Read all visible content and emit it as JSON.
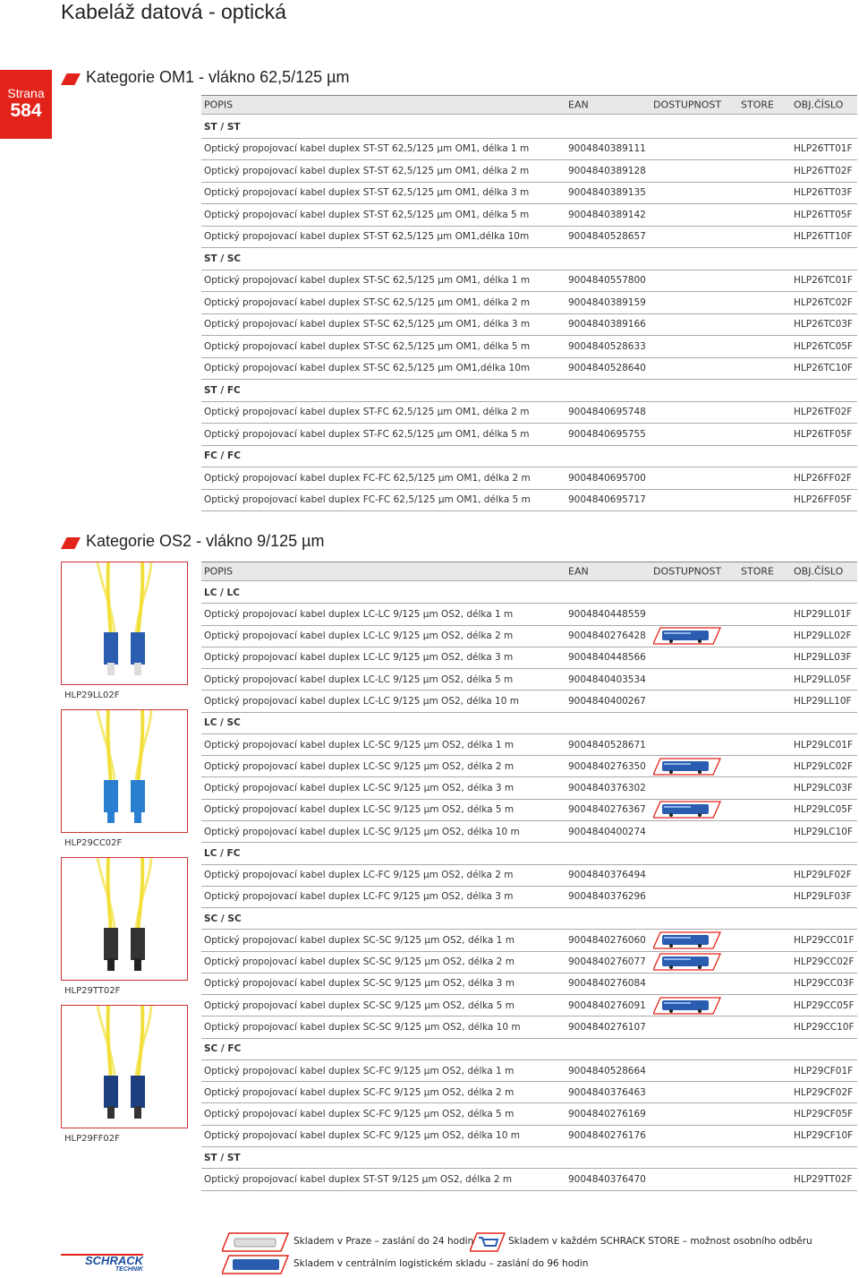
{
  "header": {
    "title": "Kabeláž datová - optická",
    "page_label": "Strana",
    "page_number": "584"
  },
  "sections": [
    {
      "title": "Kategorie OM1 - vlákno 62,5/125 µm",
      "columns": [
        "POPIS",
        "EAN",
        "DOSTUPNOST",
        "STORE",
        "OBJ.ČÍSLO"
      ],
      "groups": [
        {
          "name": "ST / ST",
          "rows": [
            {
              "popis": "Optický propojovací kabel duplex ST-ST 62,5/125 µm OM1, délka 1 m",
              "ean": "9004840389111",
              "obj": "HLP26TT01F"
            },
            {
              "popis": "Optický propojovací kabel duplex ST-ST 62,5/125 µm OM1, délka 2 m",
              "ean": "9004840389128",
              "obj": "HLP26TT02F"
            },
            {
              "popis": "Optický propojovací kabel duplex ST-ST 62,5/125 µm OM1, délka 3 m",
              "ean": "9004840389135",
              "obj": "HLP26TT03F"
            },
            {
              "popis": "Optický propojovací kabel duplex ST-ST 62,5/125 µm OM1, délka 5 m",
              "ean": "9004840389142",
              "obj": "HLP26TT05F"
            },
            {
              "popis": "Optický propojovací kabel duplex ST-ST 62,5/125 µm OM1,délka 10m",
              "ean": "9004840528657",
              "obj": "HLP26TT10F"
            }
          ]
        },
        {
          "name": "ST / SC",
          "rows": [
            {
              "popis": "Optický propojovací kabel duplex ST-SC 62,5/125 µm OM1, délka 1 m",
              "ean": "9004840557800",
              "obj": "HLP26TC01F"
            },
            {
              "popis": "Optický propojovací kabel duplex ST-SC 62,5/125 µm OM1, délka 2 m",
              "ean": "9004840389159",
              "obj": "HLP26TC02F"
            },
            {
              "popis": "Optický propojovací kabel duplex ST-SC 62,5/125 µm OM1, délka 3 m",
              "ean": "9004840389166",
              "obj": "HLP26TC03F"
            },
            {
              "popis": "Optický propojovací kabel duplex ST-SC 62,5/125 µm OM1, délka 5 m",
              "ean": "9004840528633",
              "obj": "HLP26TC05F"
            },
            {
              "popis": "Optický propojovací kabel duplex ST-SC 62,5/125 µm OM1,délka 10m",
              "ean": "9004840528640",
              "obj": "HLP26TC10F"
            }
          ]
        },
        {
          "name": "ST / FC",
          "rows": [
            {
              "popis": "Optický propojovací kabel duplex ST-FC 62,5/125 µm OM1, délka 2 m",
              "ean": "9004840695748",
              "obj": "HLP26TF02F"
            },
            {
              "popis": "Optický propojovací kabel duplex ST-FC 62,5/125 µm OM1, délka 5 m",
              "ean": "9004840695755",
              "obj": "HLP26TF05F"
            }
          ]
        },
        {
          "name": "FC / FC",
          "rows": [
            {
              "popis": "Optický propojovací kabel duplex FC-FC 62,5/125 µm OM1, délka 2 m",
              "ean": "9004840695700",
              "obj": "HLP26FF02F"
            },
            {
              "popis": "Optický propojovací kabel duplex FC-FC 62,5/125 µm OM1, délka 5 m",
              "ean": "9004840695717",
              "obj": "HLP26FF05F"
            }
          ]
        }
      ]
    },
    {
      "title": "Kategorie OS2 - vlákno 9/125 µm",
      "columns": [
        "POPIS",
        "EAN",
        "DOSTUPNOST",
        "STORE",
        "OBJ.ČÍSLO"
      ],
      "groups": [
        {
          "name": "LC / LC",
          "rows": [
            {
              "popis": "Optický propojovací kabel duplex LC-LC 9/125 µm OS2, délka 1 m",
              "ean": "9004840448559",
              "obj": "HLP29LL01F"
            },
            {
              "popis": "Optický propojovací kabel duplex LC-LC 9/125 µm OS2, délka 2 m",
              "ean": "9004840276428",
              "obj": "HLP29LL02F",
              "truck": true
            },
            {
              "popis": "Optický propojovací kabel duplex LC-LC 9/125 µm OS2, délka 3 m",
              "ean": "9004840448566",
              "obj": "HLP29LL03F"
            },
            {
              "popis": "Optický propojovací kabel duplex LC-LC 9/125 µm OS2, délka 5 m",
              "ean": "9004840403534",
              "obj": "HLP29LL05F"
            },
            {
              "popis": "Optický propojovací kabel duplex LC-LC 9/125 µm OS2, délka 10 m",
              "ean": "9004840400267",
              "obj": "HLP29LL10F"
            }
          ]
        },
        {
          "name": "LC / SC",
          "rows": [
            {
              "popis": "Optický propojovací kabel duplex LC-SC 9/125 µm OS2, délka 1 m",
              "ean": "9004840528671",
              "obj": "HLP29LC01F"
            },
            {
              "popis": "Optický propojovací kabel duplex LC-SC 9/125 µm OS2, délka 2 m",
              "ean": "9004840276350",
              "obj": "HLP29LC02F",
              "truck": true
            },
            {
              "popis": "Optický propojovací kabel duplex LC-SC 9/125 µm OS2, délka 3 m",
              "ean": "9004840376302",
              "obj": "HLP29LC03F"
            },
            {
              "popis": "Optický propojovací kabel duplex LC-SC 9/125 µm OS2, délka 5 m",
              "ean": "9004840276367",
              "obj": "HLP29LC05F",
              "truck": true
            },
            {
              "popis": "Optický propojovací kabel duplex LC-SC 9/125 µm OS2, délka 10 m",
              "ean": "9004840400274",
              "obj": "HLP29LC10F"
            }
          ]
        },
        {
          "name": "LC / FC",
          "rows": [
            {
              "popis": "Optický propojovací kabel duplex LC-FC 9/125 µm OS2, délka 2 m",
              "ean": "9004840376494",
              "obj": "HLP29LF02F"
            },
            {
              "popis": "Optický propojovací kabel duplex LC-FC 9/125 µm OS2, délka 3 m",
              "ean": "9004840376296",
              "obj": "HLP29LF03F"
            }
          ]
        },
        {
          "name": "SC / SC",
          "rows": [
            {
              "popis": "Optický propojovací kabel duplex SC-SC 9/125 µm OS2, délka 1 m",
              "ean": "9004840276060",
              "obj": "HLP29CC01F",
              "truck": true
            },
            {
              "popis": "Optický propojovací kabel duplex SC-SC 9/125 µm OS2, délka 2 m",
              "ean": "9004840276077",
              "obj": "HLP29CC02F",
              "truck": true
            },
            {
              "popis": "Optický propojovací kabel duplex SC-SC 9/125 µm OS2, délka 3 m",
              "ean": "9004840276084",
              "obj": "HLP29CC03F"
            },
            {
              "popis": "Optický propojovací kabel duplex SC-SC 9/125 µm OS2, délka 5 m",
              "ean": "9004840276091",
              "obj": "HLP29CC05F",
              "truck": true
            },
            {
              "popis": "Optický propojovací kabel duplex SC-SC 9/125 µm OS2, délka 10 m",
              "ean": "9004840276107",
              "obj": "HLP29CC10F"
            }
          ]
        },
        {
          "name": "SC / FC",
          "rows": [
            {
              "popis": "Optický propojovací kabel duplex SC-FC 9/125 µm OS2, délka 1 m",
              "ean": "9004840528664",
              "obj": "HLP29CF01F"
            },
            {
              "popis": "Optický propojovací kabel duplex SC-FC 9/125 µm OS2, délka 2 m",
              "ean": "9004840376463",
              "obj": "HLP29CF02F"
            },
            {
              "popis": "Optický propojovací kabel duplex SC-FC 9/125 µm OS2, délka 5 m",
              "ean": "9004840276169",
              "obj": "HLP29CF05F"
            },
            {
              "popis": "Optický propojovací kabel duplex SC-FC 9/125 µm OS2, délka 10 m",
              "ean": "9004840276176",
              "obj": "HLP29CF10F"
            }
          ]
        },
        {
          "name": "ST / ST",
          "rows": [
            {
              "popis": "Optický propojovací kabel duplex ST-ST 9/125 µm OS2, délka 2 m",
              "ean": "9004840376470",
              "obj": "HLP29TT02F"
            }
          ]
        }
      ]
    }
  ],
  "images": [
    "HLP29LL02F",
    "HLP29CC02F",
    "HLP29TT02F",
    "HLP29FF02F"
  ],
  "legend": [
    "Skladem v Praze – zaslání do 24 hodin",
    "Skladem v každém SCHRACK STORE – možnost osobního odběru",
    "Skladem v centrálním logistickém skladu – zaslání do 96 hodin"
  ],
  "logo": {
    "name": "SCHRACK",
    "sub": "TECHNIK"
  }
}
